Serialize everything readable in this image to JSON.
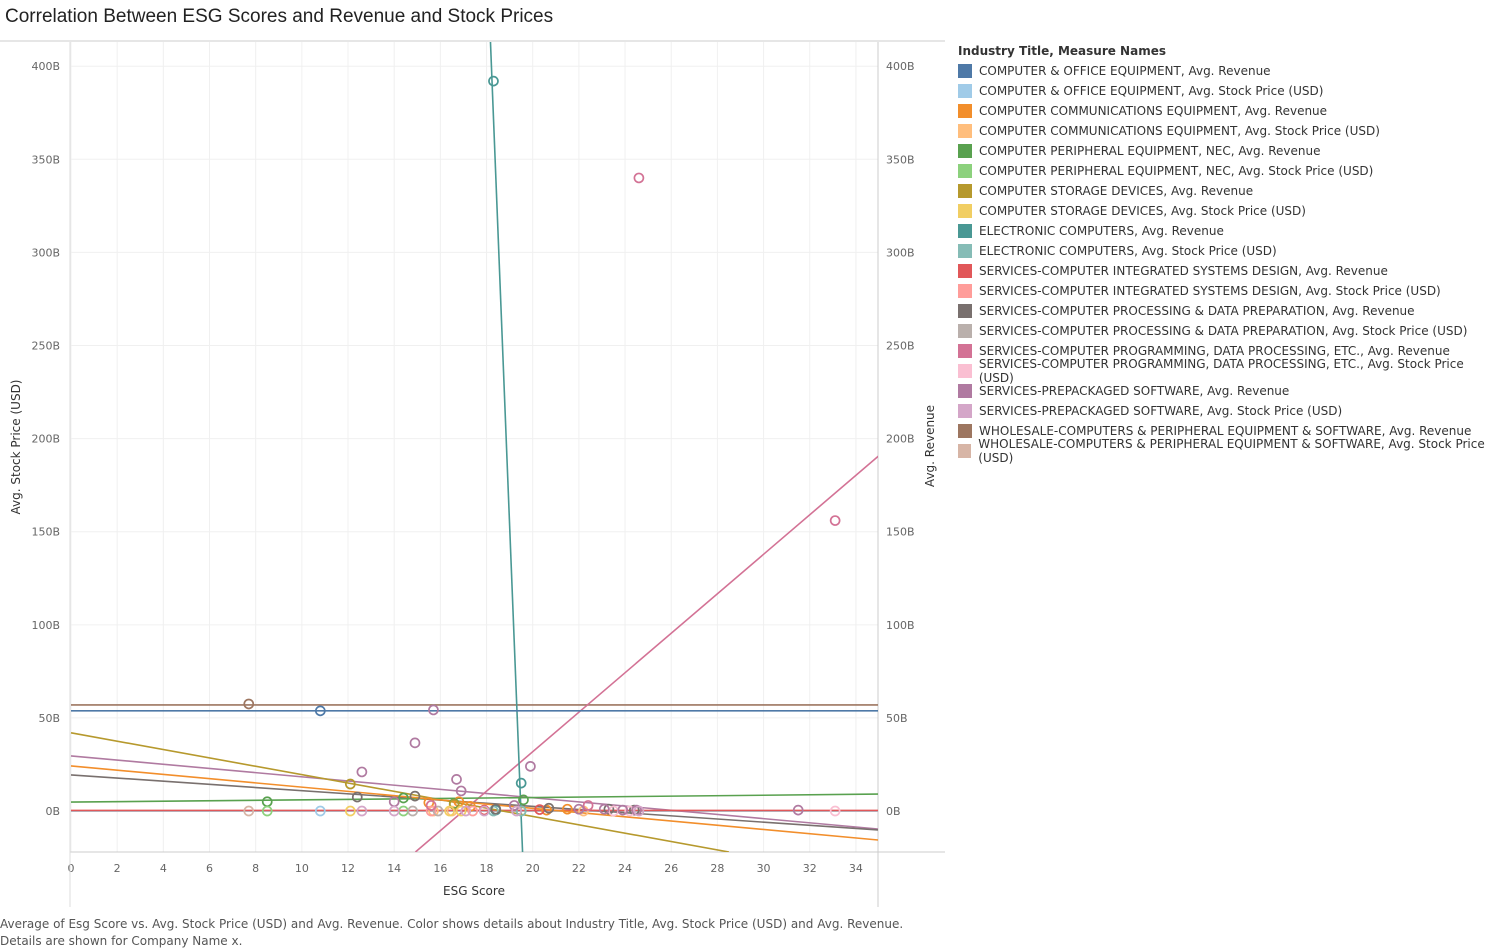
{
  "title": "Correlation Between ESG Scores and Revenue and Stock Prices",
  "caption": [
    "Average of Esg Score vs. Avg. Stock Price (USD) and Avg. Revenue.  Color shows details about Industry Title, Avg. Stock Price (USD) and Avg. Revenue.",
    "Details are shown for Company Name x."
  ],
  "legend_title": "Industry Title, Measure Names",
  "chart_data": {
    "type": "scatter",
    "title": "Correlation Between ESG Scores and Revenue and Stock Prices",
    "xlabel": "ESG Score",
    "ylabel": "Avg. Stock Price (USD)",
    "y2label": "Avg. Revenue",
    "xlim": [
      0,
      35
    ],
    "ylim": [
      -22,
      413
    ],
    "xticks": [
      0,
      2,
      4,
      6,
      8,
      10,
      12,
      14,
      16,
      18,
      20,
      22,
      24,
      26,
      28,
      30,
      32,
      34
    ],
    "yticks": [
      0,
      50,
      100,
      150,
      200,
      250,
      300,
      350,
      400
    ],
    "ytick_labels": [
      "0B",
      "50B",
      "100B",
      "150B",
      "200B",
      "250B",
      "300B",
      "350B",
      "400B"
    ],
    "grid": true,
    "legend_position": "right",
    "trend_lines": true,
    "series": [
      {
        "name": "COMPUTER & OFFICE EQUIPMENT, Avg. Revenue",
        "color": "#4e79a7",
        "points": [
          [
            10.8,
            53.8
          ]
        ],
        "trend": [
          [
            0,
            53.8
          ],
          [
            35,
            53.8
          ]
        ]
      },
      {
        "name": "COMPUTER & OFFICE EQUIPMENT, Avg. Stock Price (USD)",
        "color": "#a0cbe8",
        "points": [
          [
            10.8,
            0
          ]
        ],
        "trend": [
          [
            0,
            0
          ],
          [
            35,
            0
          ]
        ]
      },
      {
        "name": "COMPUTER COMMUNICATIONS EQUIPMENT, Avg. Revenue",
        "color": "#f28e2b",
        "points": [
          [
            15.5,
            4.5
          ],
          [
            16.8,
            5
          ],
          [
            17.3,
            2.5
          ],
          [
            20.6,
            0.5
          ],
          [
            21.5,
            1
          ]
        ],
        "trend": [
          [
            0,
            24.2
          ],
          [
            35,
            -15.6
          ]
        ]
      },
      {
        "name": "COMPUTER COMMUNICATIONS EQUIPMENT, Avg. Stock Price (USD)",
        "color": "#ffbe7d",
        "points": [
          [
            15.7,
            0
          ],
          [
            16.5,
            0
          ],
          [
            22.2,
            0
          ]
        ],
        "trend": [
          [
            0,
            0
          ],
          [
            35,
            0
          ]
        ]
      },
      {
        "name": "COMPUTER PERIPHERAL EQUIPMENT, NEC, Avg. Revenue",
        "color": "#59a14f",
        "points": [
          [
            8.5,
            5
          ],
          [
            14.4,
            7
          ],
          [
            16.6,
            4
          ],
          [
            19.6,
            6
          ]
        ],
        "trend": [
          [
            0,
            4.8
          ],
          [
            35,
            9.1
          ]
        ]
      },
      {
        "name": "COMPUTER PERIPHERAL EQUIPMENT, NEC, Avg. Stock Price (USD)",
        "color": "#8cd17d",
        "points": [
          [
            8.5,
            0
          ],
          [
            14.4,
            0
          ],
          [
            19.5,
            0
          ]
        ],
        "trend": [
          [
            0,
            0
          ],
          [
            35,
            0
          ]
        ]
      },
      {
        "name": "COMPUTER STORAGE DEVICES, Avg. Revenue",
        "color": "#b6992d",
        "points": [
          [
            12.1,
            14.5
          ],
          [
            16.6,
            3.5
          ]
        ],
        "trend": [
          [
            0,
            42
          ],
          [
            28.5,
            -22
          ]
        ]
      },
      {
        "name": "COMPUTER STORAGE DEVICES, Avg. Stock Price (USD)",
        "color": "#f1ce63",
        "points": [
          [
            12.1,
            0
          ],
          [
            16.4,
            0
          ],
          [
            16.9,
            0
          ]
        ],
        "trend": [
          [
            0,
            0
          ],
          [
            35,
            0
          ]
        ]
      },
      {
        "name": "ELECTRONIC COMPUTERS, Avg. Revenue",
        "color": "#499894",
        "points": [
          [
            18.3,
            392
          ],
          [
            19.5,
            15
          ],
          [
            18.4,
            0.5
          ]
        ],
        "trend": [
          [
            18.17,
            413
          ],
          [
            19.56,
            -22
          ]
        ]
      },
      {
        "name": "ELECTRONIC COMPUTERS, Avg. Stock Price (USD)",
        "color": "#86bcb6",
        "points": [
          [
            18.3,
            0
          ],
          [
            19.5,
            0
          ]
        ],
        "trend": [
          [
            0,
            0
          ],
          [
            35,
            0
          ]
        ]
      },
      {
        "name": "SERVICES-COMPUTER INTEGRATED SYSTEMS DESIGN, Avg. Revenue",
        "color": "#e15759",
        "points": [
          [
            17.9,
            0.5
          ],
          [
            20.3,
            0.8
          ]
        ],
        "trend": [
          [
            0,
            0.3
          ],
          [
            35,
            0.3
          ]
        ]
      },
      {
        "name": "SERVICES-COMPUTER INTEGRATED SYSTEMS DESIGN, Avg. Stock Price (USD)",
        "color": "#ff9d9a",
        "points": [
          [
            15.6,
            0
          ],
          [
            17.4,
            0
          ]
        ],
        "trend": [
          [
            0,
            0
          ],
          [
            35,
            0
          ]
        ]
      },
      {
        "name": "SERVICES-COMPUTER PROCESSING & DATA PREPARATION, Avg. Revenue",
        "color": "#79706e",
        "points": [
          [
            12.4,
            7.5
          ],
          [
            14.9,
            8
          ],
          [
            18.4,
            1
          ],
          [
            20.7,
            1.5
          ],
          [
            23.3,
            1
          ],
          [
            24.4,
            0.5
          ]
        ],
        "trend": [
          [
            0,
            19.4
          ],
          [
            35,
            -10.2
          ]
        ]
      },
      {
        "name": "SERVICES-COMPUTER PROCESSING & DATA PREPARATION, Avg. Stock Price (USD)",
        "color": "#bab0ac",
        "points": [
          [
            14.8,
            0
          ],
          [
            15.9,
            0
          ]
        ],
        "trend": [
          [
            0,
            0
          ],
          [
            35,
            0
          ]
        ]
      },
      {
        "name": "SERVICES-COMPUTER PROGRAMMING, DATA PROCESSING, ETC., Avg. Revenue",
        "color": "#d37295",
        "points": [
          [
            24.6,
            340
          ],
          [
            33.1,
            156
          ],
          [
            15.6,
            3
          ],
          [
            22.4,
            3
          ]
        ],
        "trend": [
          [
            14.92,
            -22
          ],
          [
            35,
            190.9
          ]
        ]
      },
      {
        "name": "SERVICES-COMPUTER PROGRAMMING, DATA PROCESSING, ETC., Avg. Stock Price (USD)",
        "color": "#fabfd2",
        "points": [
          [
            33.1,
            0
          ],
          [
            23.5,
            0
          ],
          [
            24.2,
            0
          ]
        ],
        "trend": [
          [
            0,
            0
          ],
          [
            35,
            0
          ]
        ]
      },
      {
        "name": "SERVICES-PREPACKAGED SOFTWARE, Avg. Revenue",
        "color": "#b07aa1",
        "points": [
          [
            15.7,
            54.3
          ],
          [
            14.9,
            36.6
          ],
          [
            19.9,
            24
          ],
          [
            12.6,
            21
          ],
          [
            16.7,
            17
          ],
          [
            16.9,
            10.8
          ],
          [
            14,
            5
          ],
          [
            19.2,
            3
          ],
          [
            22,
            1
          ],
          [
            23.1,
            1
          ],
          [
            23.9,
            0.5
          ],
          [
            24.5,
            0.5
          ],
          [
            31.5,
            0.5
          ]
        ],
        "trend": [
          [
            0,
            29.6
          ],
          [
            35,
            -9.7
          ]
        ]
      },
      {
        "name": "SERVICES-PREPACKAGED SOFTWARE, Avg. Stock Price (USD)",
        "color": "#d4a6c8",
        "points": [
          [
            12.6,
            0
          ],
          [
            14,
            0
          ],
          [
            17.1,
            0
          ],
          [
            17.9,
            0
          ],
          [
            19.3,
            0
          ],
          [
            24.6,
            0
          ]
        ],
        "trend": [
          [
            0,
            0
          ],
          [
            35,
            0
          ]
        ]
      },
      {
        "name": "WHOLESALE-COMPUTERS & PERIPHERAL EQUIPMENT & SOFTWARE, Avg. Revenue",
        "color": "#9d7660",
        "points": [
          [
            7.7,
            57.5
          ]
        ],
        "trend": [
          [
            0,
            57
          ],
          [
            35,
            57
          ]
        ]
      },
      {
        "name": "WHOLESALE-COMPUTERS & PERIPHERAL EQUIPMENT & SOFTWARE, Avg. Stock Price (USD)",
        "color": "#d7b5a6",
        "points": [
          [
            7.7,
            0
          ]
        ],
        "trend": [
          [
            0,
            0
          ],
          [
            35,
            0
          ]
        ]
      }
    ]
  }
}
